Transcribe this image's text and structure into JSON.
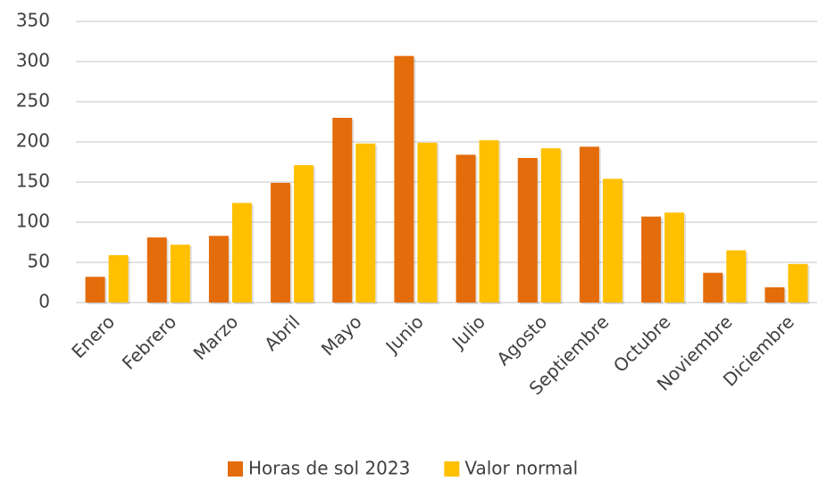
{
  "chart_data": {
    "type": "bar",
    "categories": [
      "Enero",
      "Febrero",
      "Marzo",
      "Abril",
      "Mayo",
      "Junio",
      "Julio",
      "Agosto",
      "Septiembre",
      "Octubre",
      "Noviembre",
      "Diciembre"
    ],
    "series": [
      {
        "name": "Horas de sol 2023",
        "color": "#e46c0a",
        "values": [
          32,
          81,
          83,
          149,
          230,
          307,
          184,
          180,
          194,
          107,
          37,
          19
        ]
      },
      {
        "name": "Valor normal",
        "color": "#ffc000",
        "values": [
          59,
          72,
          124,
          171,
          198,
          199,
          202,
          192,
          154,
          112,
          65,
          48
        ]
      }
    ],
    "ylim": [
      0,
      350
    ],
    "yticks": [
      0,
      50,
      100,
      150,
      200,
      250,
      300,
      350
    ],
    "grid": true,
    "legend": "bottom"
  }
}
